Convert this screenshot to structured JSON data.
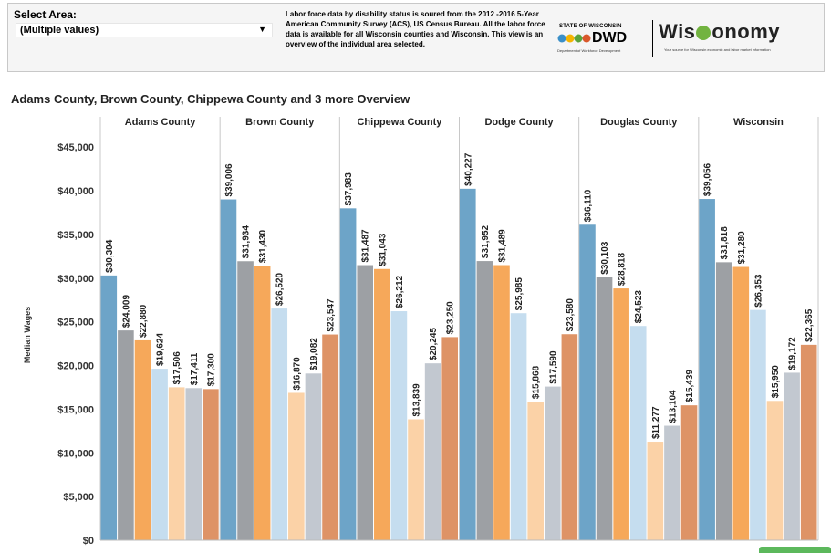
{
  "filter": {
    "label": "Select Area:",
    "value": "(Multiple values)"
  },
  "description": "Labor force data by disability status is soured from the 2012 -2016 5-Year American Community Survey (ACS), US Census Bureau. All the labor force data is available for all Wisconsin counties and Wisconsin. This view is an overview of the individual area selected.",
  "logos": {
    "dwd_state": "STATE OF WISCONSIN",
    "dwd_name": "DWD",
    "dwd_sub": "Department of Workforce Development",
    "wisconomy_prefix": "Wis",
    "wisconomy_suffix": "onomy",
    "wisconomy_tagline": "Your source for Wisconsin economic and labor market information"
  },
  "chart_data": {
    "type": "bar",
    "title": "Adams County, Brown County, Chippewa County and 3 more Overview",
    "ylabel": "Median Wages",
    "ylim": [
      0,
      47000
    ],
    "yticks": [
      0,
      5000,
      10000,
      15000,
      20000,
      25000,
      30000,
      35000,
      40000,
      45000
    ],
    "ytick_labels": [
      "$0",
      "$5,000",
      "$10,000",
      "$15,000",
      "$20,000",
      "$25,000",
      "$30,000",
      "$35,000",
      "$40,000",
      "$45,000"
    ],
    "categories": [
      "Adams County",
      "Brown County",
      "Chippewa County",
      "Dodge County",
      "Douglas County",
      "Wisconsin"
    ],
    "bar_colors": [
      "#6da4c8",
      "#9da0a4",
      "#f6a85a",
      "#c5ddef",
      "#fbd2a7",
      "#c2c8d0",
      "#de9366"
    ],
    "bars": [
      {
        "values": [
          30304,
          24009,
          22880,
          19624,
          17506,
          17411,
          17300
        ],
        "labels": [
          "$30,304",
          "$24,009",
          "$22,880",
          "$19,624",
          "$17,506",
          "$17,411",
          "$17,300"
        ]
      },
      {
        "values": [
          39006,
          31934,
          31430,
          26520,
          16870,
          19082,
          23547
        ],
        "labels": [
          "$39,006",
          "$31,934",
          "$31,430",
          "$26,520",
          "$16,870",
          "$19,082",
          "$23,547"
        ]
      },
      {
        "values": [
          37983,
          31487,
          31043,
          26212,
          13839,
          20245,
          23250
        ],
        "labels": [
          "$37,983",
          "$31,487",
          "$31,043",
          "$26,212",
          "$13,839",
          "$20,245",
          "$23,250"
        ]
      },
      {
        "values": [
          40227,
          31952,
          31489,
          25985,
          15868,
          17590,
          23580
        ],
        "labels": [
          "$40,227",
          "$31,952",
          "$31,489",
          "$25,985",
          "$15,868",
          "$17,590",
          "$23,580"
        ]
      },
      {
        "values": [
          36110,
          30103,
          28818,
          24523,
          11277,
          13104,
          15439
        ],
        "labels": [
          "$36,110",
          "$30,103",
          "$28,818",
          "$24,523",
          "$11,277",
          "$13,104",
          "$15,439"
        ]
      },
      {
        "values": [
          39056,
          31818,
          31280,
          26353,
          15950,
          19172,
          22365
        ],
        "labels": [
          "$39,056",
          "$31,818",
          "$31,280",
          "$26,353",
          "$15,950",
          "$19,172",
          "$22,365"
        ]
      }
    ]
  }
}
